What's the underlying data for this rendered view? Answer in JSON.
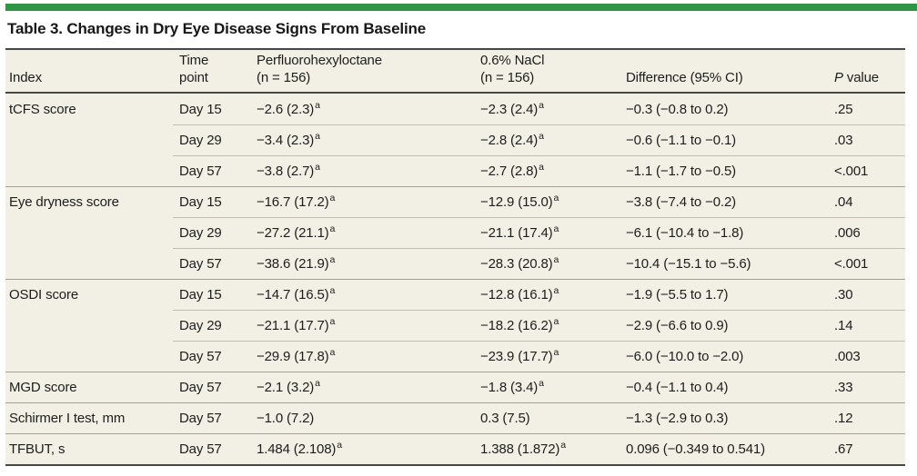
{
  "title": "Table 3. Changes in Dry Eye Disease Signs From Baseline",
  "colors": {
    "accent_green": "#2e9645",
    "table_background": "#f2f0e4",
    "rule_dark": "#474747",
    "rule_section": "#a3a094",
    "rule_subrow": "#c0bdb1",
    "text": "#1d1d1d"
  },
  "header": {
    "index": "Index",
    "time_line1": "Time",
    "time_line2": "point",
    "pfho_line1": "Perfluorohexyloctane",
    "pfho_line2": "(n = 156)",
    "nacl_line1": "0.6% NaCl",
    "nacl_line2": "(n = 156)",
    "difference": "Difference (95% CI)",
    "pvalue_italic": "P",
    "pvalue_rest": " value"
  },
  "sections": [
    {
      "index": "tCFS score",
      "rows": [
        {
          "time_point": "Day 15",
          "pfho": "−2.6 (2.3)",
          "pfho_sup": "a",
          "nacl": "−2.3 (2.4)",
          "nacl_sup": "a",
          "difference": "−0.3 (−0.8 to 0.2)",
          "p_value": ".25"
        },
        {
          "time_point": "Day 29",
          "pfho": "−3.4 (2.3)",
          "pfho_sup": "a",
          "nacl": "−2.8 (2.4)",
          "nacl_sup": "a",
          "difference": "−0.6 (−1.1 to −0.1)",
          "p_value": ".03"
        },
        {
          "time_point": "Day 57",
          "pfho": "−3.8 (2.7)",
          "pfho_sup": "a",
          "nacl": "−2.7 (2.8)",
          "nacl_sup": "a",
          "difference": "−1.1 (−1.7 to −0.5)",
          "p_value": "<.001"
        }
      ]
    },
    {
      "index": "Eye dryness score",
      "rows": [
        {
          "time_point": "Day 15",
          "pfho": "−16.7 (17.2)",
          "pfho_sup": "a",
          "nacl": "−12.9 (15.0)",
          "nacl_sup": "a",
          "difference": "−3.8 (−7.4 to −0.2)",
          "p_value": ".04"
        },
        {
          "time_point": "Day 29",
          "pfho": "−27.2 (21.1)",
          "pfho_sup": "a",
          "nacl": "−21.1 (17.4)",
          "nacl_sup": "a",
          "difference": "−6.1 (−10.4 to −1.8)",
          "p_value": ".006"
        },
        {
          "time_point": "Day 57",
          "pfho": "−38.6 (21.9)",
          "pfho_sup": "a",
          "nacl": "−28.3 (20.8)",
          "nacl_sup": "a",
          "difference": "−10.4 (−15.1 to −5.6)",
          "p_value": "<.001"
        }
      ]
    },
    {
      "index": "OSDI score",
      "rows": [
        {
          "time_point": "Day 15",
          "pfho": "−14.7 (16.5)",
          "pfho_sup": "a",
          "nacl": "−12.8 (16.1)",
          "nacl_sup": "a",
          "difference": "−1.9 (−5.5 to 1.7)",
          "p_value": ".30"
        },
        {
          "time_point": "Day 29",
          "pfho": "−21.1 (17.7)",
          "pfho_sup": "a",
          "nacl": "−18.2 (16.2)",
          "nacl_sup": "a",
          "difference": "−2.9 (−6.6 to 0.9)",
          "p_value": ".14"
        },
        {
          "time_point": "Day 57",
          "pfho": "−29.9 (17.8)",
          "pfho_sup": "a",
          "nacl": "−23.9 (17.7)",
          "nacl_sup": "a",
          "difference": "−6.0 (−10.0 to −2.0)",
          "p_value": ".003"
        }
      ]
    },
    {
      "index": "MGD score",
      "rows": [
        {
          "time_point": "Day 57",
          "pfho": "−2.1 (3.2)",
          "pfho_sup": "a",
          "nacl": "−1.8 (3.4)",
          "nacl_sup": "a",
          "difference": "−0.4 (−1.1 to 0.4)",
          "p_value": ".33"
        }
      ]
    },
    {
      "index": "Schirmer I test, mm",
      "rows": [
        {
          "time_point": "Day 57",
          "pfho": "−1.0 (7.2)",
          "pfho_sup": "",
          "nacl": "0.3 (7.5)",
          "nacl_sup": "",
          "difference": "−1.3 (−2.9 to 0.3)",
          "p_value": ".12"
        }
      ]
    },
    {
      "index": "TFBUT, s",
      "rows": [
        {
          "time_point": "Day 57",
          "pfho": "1.484 (2.108)",
          "pfho_sup": "a",
          "nacl": "1.388 (1.872)",
          "nacl_sup": "a",
          "difference": "0.096 (−0.349 to 0.541)",
          "p_value": ".67"
        }
      ]
    }
  ]
}
